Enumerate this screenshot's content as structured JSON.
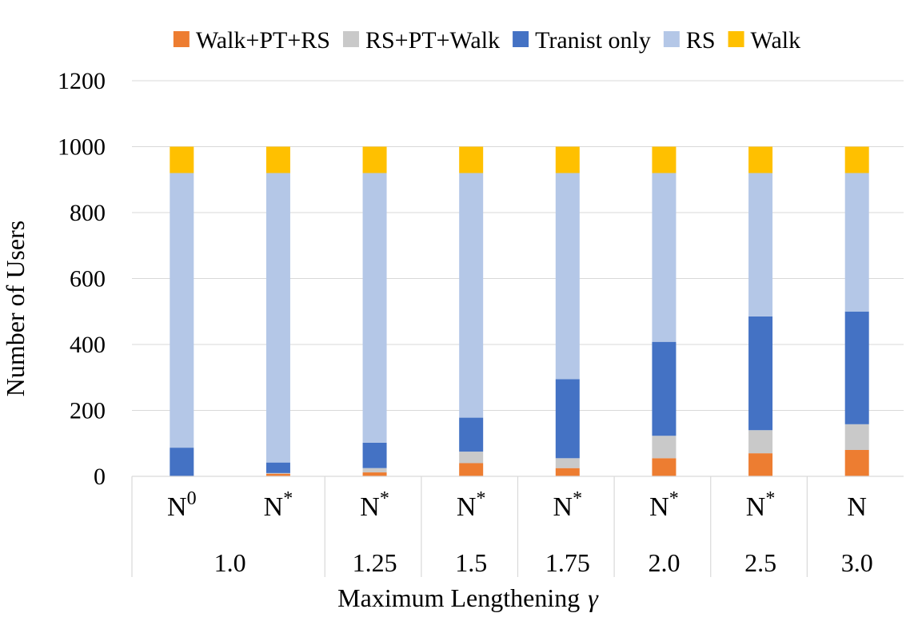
{
  "chart_data": {
    "type": "bar",
    "stacked": true,
    "title": "",
    "xlabel": "Maximum Lengthening",
    "xlabel_symbol": "γ",
    "ylabel": "Number of  Users",
    "ylim": [
      0,
      1200
    ],
    "yticks": [
      "0",
      "200",
      "400",
      "600",
      "800",
      "1000",
      "1200"
    ],
    "grid": true,
    "legend_position": "top",
    "categories": [
      {
        "base": "N",
        "sup": "0"
      },
      {
        "base": "N",
        "sup": "*"
      },
      {
        "base": "N",
        "sup": "*"
      },
      {
        "base": "N",
        "sup": "*"
      },
      {
        "base": "N",
        "sup": "*"
      },
      {
        "base": "N",
        "sup": "*"
      },
      {
        "base": "N",
        "sup": "*"
      },
      {
        "base": "N",
        "sup": ""
      }
    ],
    "groups": [
      {
        "label": "1.0",
        "span": 2
      },
      {
        "label": "1.25",
        "span": 1
      },
      {
        "label": "1.5",
        "span": 1
      },
      {
        "label": "1.75",
        "span": 1
      },
      {
        "label": "2.0",
        "span": 1
      },
      {
        "label": "2.5",
        "span": 1
      },
      {
        "label": "3.0",
        "span": 1
      }
    ],
    "series": [
      {
        "name": "Walk+PT+RS",
        "color": "#ED7D31",
        "values": [
          0,
          8,
          12,
          40,
          25,
          55,
          70,
          80
        ]
      },
      {
        "name": "RS+PT+Walk",
        "color": "#C9C9C9",
        "values": [
          0,
          2,
          13,
          35,
          30,
          68,
          70,
          78
        ]
      },
      {
        "name": "Tranist only",
        "color": "#4472C4",
        "values": [
          87,
          32,
          77,
          103,
          240,
          285,
          345,
          342
        ]
      },
      {
        "name": "RS",
        "color": "#B4C7E7",
        "values": [
          833,
          878,
          818,
          742,
          625,
          512,
          435,
          420
        ]
      },
      {
        "name": "Walk",
        "color": "#FFC000",
        "values": [
          80,
          80,
          80,
          80,
          80,
          80,
          80,
          80
        ]
      }
    ]
  }
}
